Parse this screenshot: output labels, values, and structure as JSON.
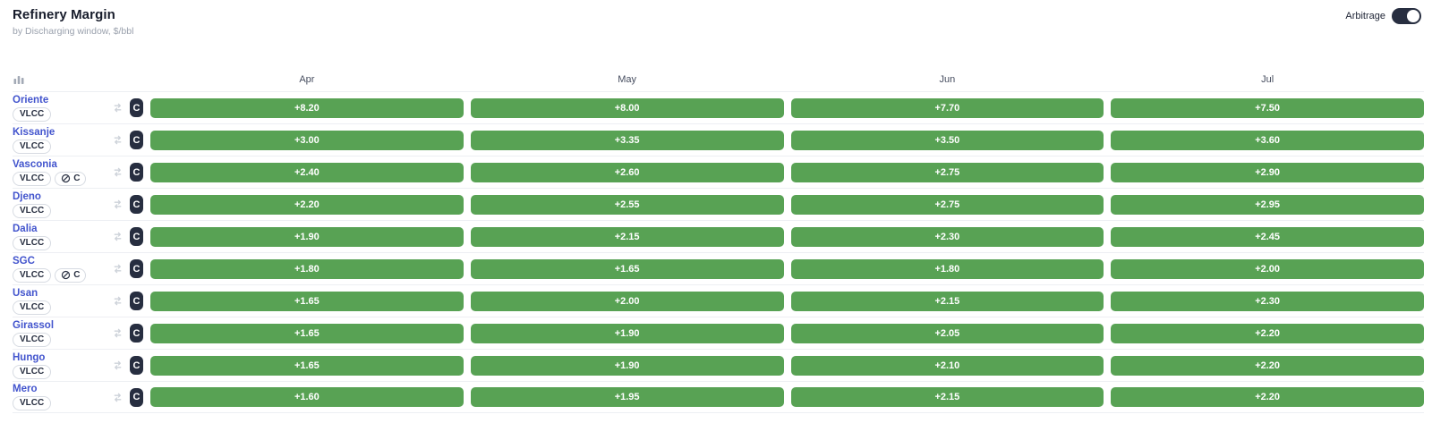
{
  "header": {
    "title": "Refinery Margin",
    "subtitle": "by Discharging window, $/bbl",
    "arbitrage_label": "Arbitrage",
    "arbitrage_on": true
  },
  "table": {
    "corner_icon": "bar-chart-icon",
    "months": [
      "Apr",
      "May",
      "Jun",
      "Jul"
    ],
    "c_badge_label": "C",
    "c_pill_label": "C",
    "unit": "$/bbl",
    "rows": [
      {
        "name": "Oriente",
        "vessel": "VLCC",
        "c_tag": false,
        "values": [
          "+8.20",
          "+8.00",
          "+7.70",
          "+7.50"
        ]
      },
      {
        "name": "Kissanje",
        "vessel": "VLCC",
        "c_tag": false,
        "values": [
          "+3.00",
          "+3.35",
          "+3.50",
          "+3.60"
        ]
      },
      {
        "name": "Vasconia",
        "vessel": "VLCC",
        "c_tag": true,
        "values": [
          "+2.40",
          "+2.60",
          "+2.75",
          "+2.90"
        ]
      },
      {
        "name": "Djeno",
        "vessel": "VLCC",
        "c_tag": false,
        "values": [
          "+2.20",
          "+2.55",
          "+2.75",
          "+2.95"
        ]
      },
      {
        "name": "Dalia",
        "vessel": "VLCC",
        "c_tag": false,
        "values": [
          "+1.90",
          "+2.15",
          "+2.30",
          "+2.45"
        ]
      },
      {
        "name": "SGC",
        "vessel": "VLCC",
        "c_tag": true,
        "values": [
          "+1.80",
          "+1.65",
          "+1.80",
          "+2.00"
        ]
      },
      {
        "name": "Usan",
        "vessel": "VLCC",
        "c_tag": false,
        "values": [
          "+1.65",
          "+2.00",
          "+2.15",
          "+2.30"
        ]
      },
      {
        "name": "Girassol",
        "vessel": "VLCC",
        "c_tag": false,
        "values": [
          "+1.65",
          "+1.90",
          "+2.05",
          "+2.20"
        ]
      },
      {
        "name": "Hungo",
        "vessel": "VLCC",
        "c_tag": false,
        "values": [
          "+1.65",
          "+1.90",
          "+2.10",
          "+2.20"
        ]
      },
      {
        "name": "Mero",
        "vessel": "VLCC",
        "c_tag": false,
        "values": [
          "+1.60",
          "+1.95",
          "+2.15",
          "+2.20"
        ]
      }
    ]
  },
  "colors": {
    "cell_green": "#58a254",
    "badge_dark": "#272e40",
    "grade_link_blue": "#4254cd",
    "toggle_on": "#272e40"
  }
}
